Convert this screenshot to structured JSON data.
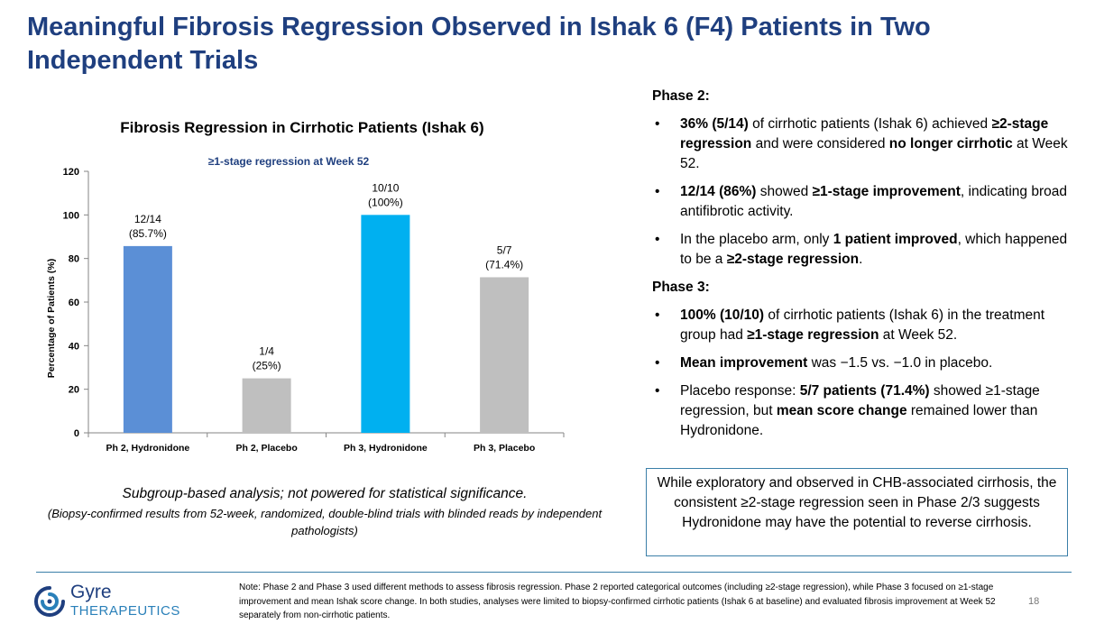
{
  "title": "Meaningful Fibrosis Regression Observed in Ishak 6 (F4) Patients in Two Independent Trials",
  "chart_data": {
    "type": "bar",
    "title": "Fibrosis Regression in Cirrhotic Patients (Ishak 6)",
    "subtitle": "≥1-stage regression at Week 52",
    "ylabel": "Percentage of Patients (%)",
    "xlabel": "",
    "ylim": [
      0,
      120
    ],
    "yticks": [
      0,
      20,
      40,
      60,
      80,
      100,
      120
    ],
    "categories": [
      "Ph 2, Hydronidone",
      "Ph 2, Placebo",
      "Ph 3, Hydronidone",
      "Ph 3, Placebo"
    ],
    "values": [
      85.7,
      25,
      100,
      71.4
    ],
    "label_counts": [
      "12/14",
      "1/4",
      "10/10",
      "5/7"
    ],
    "label_pcts": [
      "(85.7%)",
      "(25%)",
      "(100%)",
      "(71.4%)"
    ],
    "colors": [
      "#5b8fd6",
      "#bfbfbf",
      "#00b0f0",
      "#bfbfbf"
    ],
    "grid": false
  },
  "subgroup": {
    "main": "Subgroup-based analysis; not powered for statistical significance.",
    "sub": "(Biopsy-confirmed results from 52-week, randomized, double-blind trials with blinded reads by independent pathologists)"
  },
  "bullets": {
    "phase2_heading": "Phase 2:",
    "phase2": [
      [
        {
          "t": "36% (5/14)",
          "b": true
        },
        {
          "t": " of cirrhotic patients (Ishak 6) achieved ",
          "b": false
        },
        {
          "t": "≥2-stage regression",
          "b": true
        },
        {
          "t": " and were considered ",
          "b": false
        },
        {
          "t": "no longer cirrhotic",
          "b": true
        },
        {
          "t": " at Week 52.",
          "b": false
        }
      ],
      [
        {
          "t": "12/14 (86%)",
          "b": true
        },
        {
          "t": " showed ",
          "b": false
        },
        {
          "t": "≥1-stage improvement",
          "b": true
        },
        {
          "t": ", indicating broad antifibrotic activity.",
          "b": false
        }
      ],
      [
        {
          "t": "In the placebo arm, only ",
          "b": false
        },
        {
          "t": "1 patient improved",
          "b": true
        },
        {
          "t": ", which happened to be a ",
          "b": false
        },
        {
          "t": "≥2-stage regression",
          "b": true
        },
        {
          "t": ".",
          "b": false
        }
      ]
    ],
    "phase3_heading": "Phase 3:",
    "phase3": [
      [
        {
          "t": "100% (10/10)",
          "b": true
        },
        {
          "t": " of cirrhotic patients (Ishak 6) in the treatment group had ",
          "b": false
        },
        {
          "t": "≥1-stage regression",
          "b": true
        },
        {
          "t": " at Week 52.",
          "b": false
        }
      ],
      [
        {
          "t": "Mean improvement",
          "b": true
        },
        {
          "t": " was −1.5 vs. −1.0 in placebo.",
          "b": false
        }
      ],
      [
        {
          "t": "Placebo response: ",
          "b": false
        },
        {
          "t": "5/7 patients (71.4%)",
          "b": true
        },
        {
          "t": " showed ≥1-stage regression, but ",
          "b": false
        },
        {
          "t": "mean score change",
          "b": true
        },
        {
          "t": " remained lower than Hydronidone.",
          "b": false
        }
      ]
    ]
  },
  "note_box": "While exploratory and observed in CHB-associated cirrhosis, the consistent ≥2-stage regression seen in Phase 2/3 suggests Hydronidone may have the potential to reverse cirrhosis.",
  "footnote": "Note: Phase 2 and Phase 3 used different methods to assess fibrosis regression. Phase 2 reported categorical outcomes (including ≥2-stage regression), while Phase 3 focused on ≥1-stage improvement and mean Ishak score change. In both studies, analyses were limited to biopsy-confirmed cirrhotic patients (Ishak 6 at baseline) and evaluated fibrosis improvement at Week 52 separately from non-cirrhotic patients.",
  "page_number": "18",
  "logo": {
    "name": "Gyre",
    "sub": "THERAPEUTICS"
  },
  "colors": {
    "title": "#1f3f7f",
    "accent": "#2a80b9",
    "box_border": "#3b7fa8"
  }
}
